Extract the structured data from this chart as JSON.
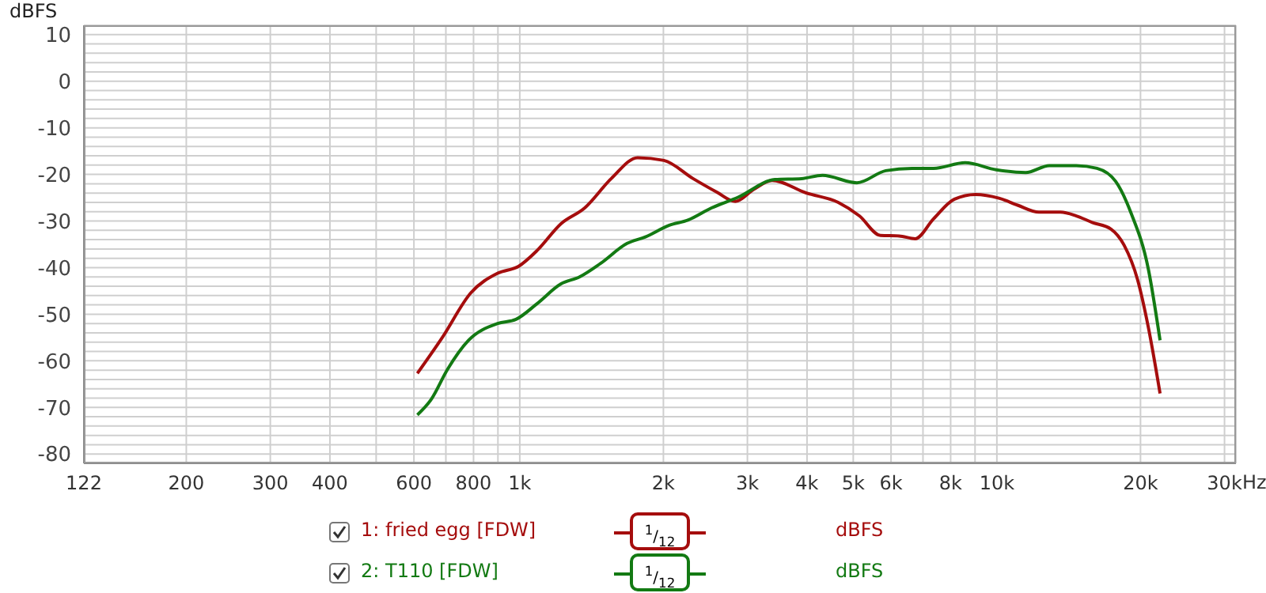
{
  "chart_data": {
    "type": "line",
    "ylabel": "dBFS",
    "legend": "bottom",
    "grid": true,
    "marker": "none",
    "line_style": "solid",
    "log": "x",
    "xlim": [
      122,
      31700
    ],
    "xticks": [
      122,
      200,
      300,
      400,
      {
        "value": 500,
        "label": null
      },
      600,
      {
        "value": 700,
        "label": null
      },
      800,
      {
        "value": 900,
        "label": null
      },
      {
        "value": 1000,
        "label": "1k"
      },
      {
        "value": 2000,
        "label": "2k"
      },
      {
        "value": 3000,
        "label": "3k"
      },
      {
        "value": 4000,
        "label": "4k"
      },
      {
        "value": 5000,
        "label": "5k"
      },
      {
        "value": 6000,
        "label": "6k"
      },
      {
        "value": 7000,
        "label": null
      },
      {
        "value": 8000,
        "label": "8k"
      },
      {
        "value": 9000,
        "label": null
      },
      {
        "value": 10000,
        "label": "10k"
      },
      {
        "value": 20000,
        "label": "20k"
      },
      {
        "value": 30000,
        "label": "30k"
      }
    ],
    "xlabel": "Hz",
    "ylim": [
      -82,
      12
    ],
    "yticks": [
      -80,
      {
        "value": -78,
        "label": null
      },
      {
        "value": -76,
        "label": null
      },
      {
        "value": -74,
        "label": null
      },
      {
        "value": -72,
        "label": null
      },
      -70,
      {
        "value": -68,
        "label": null
      },
      {
        "value": -66,
        "label": null
      },
      {
        "value": -64,
        "label": null
      },
      {
        "value": -62,
        "label": null
      },
      -60,
      {
        "value": -58,
        "label": null
      },
      {
        "value": -56,
        "label": null
      },
      {
        "value": -54,
        "label": null
      },
      {
        "value": -52,
        "label": null
      },
      -50,
      {
        "value": -48,
        "label": null
      },
      {
        "value": -46,
        "label": null
      },
      {
        "value": -44,
        "label": null
      },
      {
        "value": -42,
        "label": null
      },
      -40,
      {
        "value": -38,
        "label": null
      },
      {
        "value": -36,
        "label": null
      },
      {
        "value": -34,
        "label": null
      },
      {
        "value": -32,
        "label": null
      },
      -30,
      {
        "value": -28,
        "label": null
      },
      {
        "value": -26,
        "label": null
      },
      {
        "value": -24,
        "label": null
      },
      {
        "value": -22,
        "label": null
      },
      -20,
      {
        "value": -18,
        "label": null
      },
      {
        "value": -16,
        "label": null
      },
      {
        "value": -14,
        "label": null
      },
      {
        "value": -12,
        "label": null
      },
      -10,
      {
        "value": -8,
        "label": null
      },
      {
        "value": -6,
        "label": null
      },
      {
        "value": -4,
        "label": null
      },
      {
        "value": -2,
        "label": null
      },
      0,
      {
        "value": 2,
        "label": null
      },
      {
        "value": 4,
        "label": null
      },
      {
        "value": 6,
        "label": null
      },
      {
        "value": 8,
        "label": null
      },
      10
    ],
    "annotations": [
      "$^{1}$/$_{12}$",
      "$^{1}$/$_{12}$"
    ],
    "series": [
      {
        "name": "1: fried egg [FDW]",
        "color": "#a50d0d",
        "x": [
          610,
          688,
          790,
          899,
          995,
          1088,
          1220,
          1368,
          1555,
          1766,
          2005,
          2308,
          2588,
          2830,
          3093,
          3380,
          3989,
          4650,
          5150,
          5700,
          6240,
          6740,
          7370,
          8150,
          9020,
          10100,
          11050,
          12250,
          13590,
          14670,
          15840,
          17330,
          18480,
          19720,
          20770,
          21980
        ],
        "values": [
          -62.7,
          -55,
          -45.4,
          -41.2,
          -39.7,
          -36.3,
          -30.6,
          -27.2,
          -20.9,
          -16.4,
          -17,
          -20.9,
          -23.8,
          -25.8,
          -23.2,
          -21.3,
          -24,
          -26,
          -28.9,
          -33.1,
          -33.2,
          -33.8,
          -29.5,
          -25.3,
          -24.3,
          -25.1,
          -26.6,
          -28.1,
          -28.1,
          -28.9,
          -30.3,
          -31.7,
          -35.2,
          -42.6,
          -52.8,
          -67
        ]
      },
      {
        "name": "2: T110 [FDW]",
        "color": "#137a13",
        "x": [
          610,
          653,
          705,
          781,
          899,
          982,
          1088,
          1220,
          1334,
          1477,
          1679,
          1834,
          2058,
          2251,
          2522,
          2867,
          3425,
          3895,
          4310,
          5090,
          5850,
          6640,
          7370,
          8580,
          9970,
          11490,
          12880,
          14670,
          16210,
          17740,
          19110,
          20770,
          21980
        ],
        "values": [
          -71.6,
          -68.2,
          -61.9,
          -55.6,
          -52,
          -51.1,
          -47.7,
          -43.5,
          -42,
          -39.1,
          -34.8,
          -33.4,
          -30.9,
          -29.8,
          -27.2,
          -24.9,
          -21.1,
          -20.9,
          -20.2,
          -21.8,
          -19.2,
          -18.7,
          -18.7,
          -17.5,
          -19,
          -19.6,
          -18.1,
          -18.1,
          -18.7,
          -21.5,
          -28.3,
          -40.3,
          -55.6
        ]
      }
    ]
  }
}
